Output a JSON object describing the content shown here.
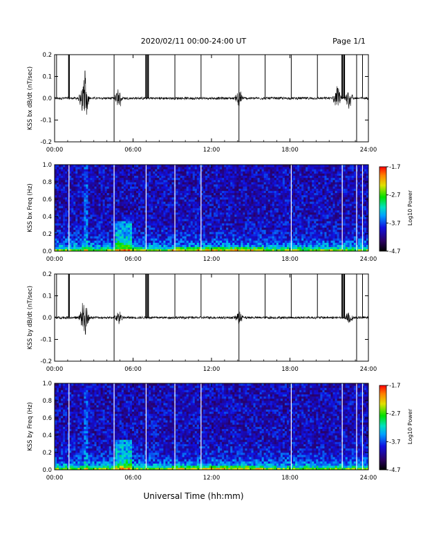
{
  "header": {
    "title": "2020/02/11  00:00-24:00 UT",
    "page": "Page 1/1"
  },
  "x_axis_label": "Universal Time (hh:mm)",
  "chart_data": [
    {
      "type": "line",
      "panel": "bx-waveform",
      "ylabel": "KSS bx dB/dt (nT/sec)",
      "xlim": [
        0,
        24
      ],
      "ylim": [
        -0.2,
        0.2
      ],
      "xticks": [
        "00:00",
        "06:00",
        "12:00",
        "18:00",
        "24:00"
      ],
      "yticks": [
        "0.2",
        "0.1",
        "0.0",
        "-0.1",
        "-0.2"
      ],
      "baseline": 0.0,
      "spike_times_hours": [
        0.15,
        1.1,
        4.55,
        7.0,
        7.15,
        9.2,
        11.2,
        14.1,
        16.1,
        18.1,
        20.1,
        22.0,
        22.15,
        23.1,
        23.55
      ],
      "bursts": [
        {
          "t": 2.35,
          "amp": 0.09
        },
        {
          "t": 2.15,
          "amp": 0.05
        },
        {
          "t": 4.9,
          "amp": 0.04
        },
        {
          "t": 14.1,
          "amp": 0.04
        },
        {
          "t": 21.6,
          "amp": 0.05
        },
        {
          "t": 22.5,
          "amp": 0.04
        }
      ]
    },
    {
      "type": "heatmap",
      "panel": "bx-spectrogram",
      "ylabel": "KSS bx Freq (Hz)",
      "xlim": [
        0,
        24
      ],
      "ylim": [
        0,
        1.0
      ],
      "xticks": [
        "00:00",
        "06:00",
        "12:00",
        "18:00",
        "24:00"
      ],
      "yticks": [
        "1.0",
        "0.8",
        "0.6",
        "0.4",
        "0.2",
        "0.0"
      ],
      "colorbar": {
        "label": "Log10 Power",
        "ticks": [
          "-1.7",
          "-2.7",
          "-3.7",
          "-4.7"
        ],
        "min": -4.7,
        "max": -1.7
      },
      "gap_times_hours": [
        1.1,
        4.55,
        7.0,
        9.2,
        11.2,
        18.1,
        22.0,
        23.1,
        23.55
      ]
    },
    {
      "type": "line",
      "panel": "by-waveform",
      "ylabel": "KSS by dB/dt (nT/sec)",
      "xlim": [
        0,
        24
      ],
      "ylim": [
        -0.2,
        0.2
      ],
      "xticks": [
        "00:00",
        "06:00",
        "12:00",
        "18:00",
        "24:00"
      ],
      "yticks": [
        "0.2",
        "0.1",
        "0.0",
        "-0.1",
        "-0.2"
      ],
      "baseline": 0.0,
      "spike_times_hours": [
        0.15,
        1.1,
        4.55,
        7.0,
        7.15,
        9.2,
        11.2,
        14.1,
        16.1,
        18.1,
        20.1,
        22.0,
        22.15,
        23.1,
        23.55
      ],
      "bursts": [
        {
          "t": 2.35,
          "amp": 0.07
        },
        {
          "t": 2.15,
          "amp": 0.04
        },
        {
          "t": 4.9,
          "amp": 0.03
        },
        {
          "t": 14.1,
          "amp": 0.03
        },
        {
          "t": 22.5,
          "amp": 0.03
        }
      ]
    },
    {
      "type": "heatmap",
      "panel": "by-spectrogram",
      "ylabel": "KSS by Freq (Hz)",
      "xlim": [
        0,
        24
      ],
      "ylim": [
        0,
        1.0
      ],
      "xticks": [
        "00:00",
        "06:00",
        "12:00",
        "18:00",
        "24:00"
      ],
      "yticks": [
        "1.0",
        "0.8",
        "0.6",
        "0.4",
        "0.2",
        "0.0"
      ],
      "colorbar": {
        "label": "Log10 Power",
        "ticks": [
          "-1.7",
          "-2.7",
          "-3.7",
          "-4.7"
        ],
        "min": -4.7,
        "max": -1.7
      },
      "gap_times_hours": [
        1.1,
        4.55,
        7.0,
        9.2,
        11.2,
        18.1,
        22.0,
        23.1,
        23.55
      ]
    }
  ]
}
